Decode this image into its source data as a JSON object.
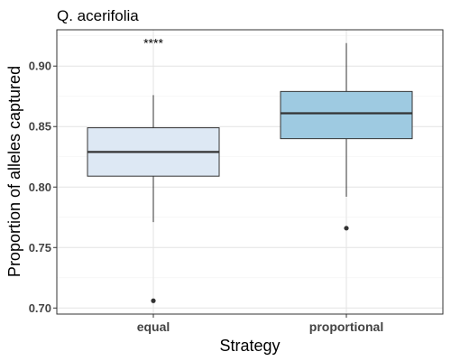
{
  "chart_data": {
    "type": "box",
    "title": "Q. acerifolia",
    "xlabel": "Strategy",
    "ylabel": "Proportion of alleles captured",
    "ylim": [
      0.695,
      0.93
    ],
    "y_ticks": [
      0.7,
      0.75,
      0.8,
      0.85,
      0.9
    ],
    "y_tick_labels": [
      "0.70",
      "0.75",
      "0.80",
      "0.85",
      "0.90"
    ],
    "categories": [
      "equal",
      "proportional"
    ],
    "boxes": [
      {
        "category": "equal",
        "whisker_low": 0.771,
        "q1": 0.809,
        "median": 0.829,
        "q3": 0.849,
        "whisker_high": 0.876,
        "outliers": [
          0.706
        ],
        "fill": "#dde8f4"
      },
      {
        "category": "proportional",
        "whisker_low": 0.792,
        "q1": 0.84,
        "median": 0.861,
        "q3": 0.879,
        "whisker_high": 0.919,
        "outliers": [
          0.766
        ],
        "fill": "#9ecae1"
      }
    ],
    "annotation": {
      "text": "****",
      "x": "equal",
      "y": 0.925
    },
    "grid": true,
    "legend": "none"
  }
}
